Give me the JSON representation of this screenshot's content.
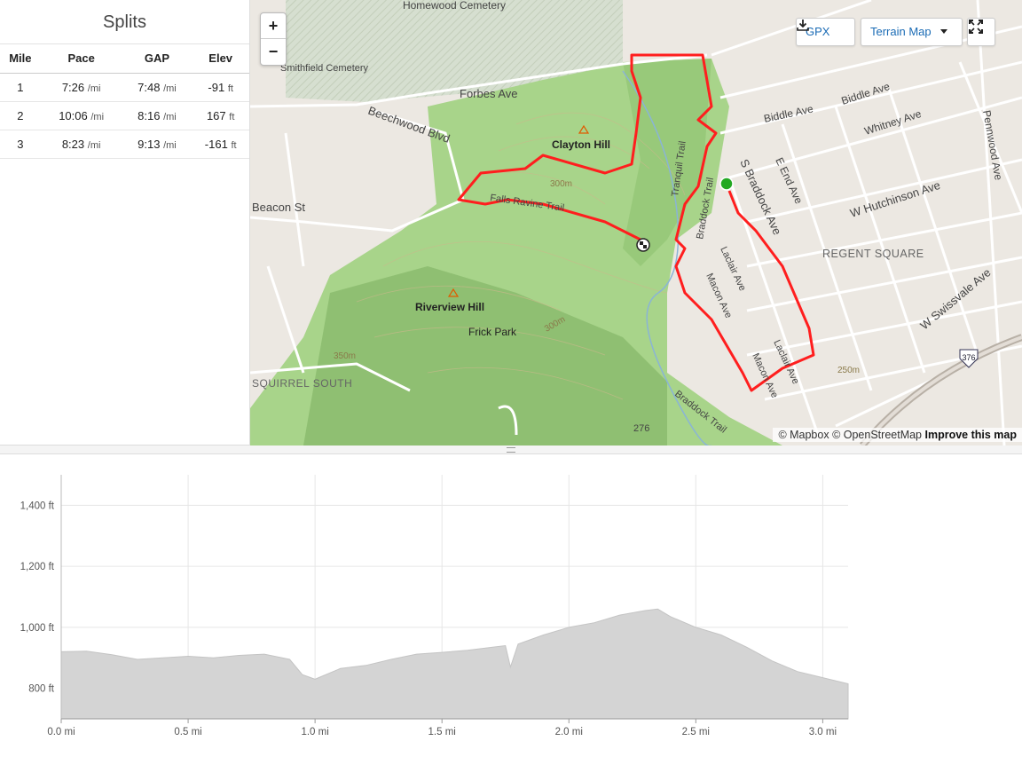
{
  "splits": {
    "title": "Splits",
    "headers": [
      "Mile",
      "Pace",
      "GAP",
      "Elev"
    ],
    "rows": [
      {
        "mile": "1",
        "pace": "7:26",
        "pace_unit": "/mi",
        "gap": "7:48",
        "gap_unit": "/mi",
        "elev": "-91",
        "elev_unit": "ft"
      },
      {
        "mile": "2",
        "pace": "10:06",
        "pace_unit": "/mi",
        "gap": "8:16",
        "gap_unit": "/mi",
        "elev": "167",
        "elev_unit": "ft"
      },
      {
        "mile": "3",
        "pace": "8:23",
        "pace_unit": "/mi",
        "gap": "9:13",
        "gap_unit": "/mi",
        "elev": "-161",
        "elev_unit": "ft"
      }
    ]
  },
  "map": {
    "zoom_in": "+",
    "zoom_out": "−",
    "gpx_label": "GPX",
    "map_type_label": "Terrain Map",
    "attribution_mapbox": "© Mapbox",
    "attribution_osm": "© OpenStreetMap",
    "attribution_improve": "Improve this map",
    "labels": {
      "homewood_cemetery": "Homewood Cemetery",
      "smithfield_cemetery": "Smithfield Cemetery",
      "forbes_ave": "Forbes Ave",
      "beechwood_blvd": "Beechwood Blvd",
      "beacon_st": "Beacon St",
      "clayton_hill": "Clayton Hill",
      "riverview_hill": "Riverview Hill",
      "frick_park": "Frick Park",
      "falls_ravine_trail": "Falls Ravine Trail",
      "tranquil_trail": "Tranquil Trail",
      "braddock_trail": "Braddock Trail",
      "s_braddock_ave": "S Braddock Ave",
      "biddle_ave": "Biddle Ave",
      "whitney_ave": "Whitney Ave",
      "e_end_ave": "E End Ave",
      "w_hutchinson_ave": "W Hutchinson Ave",
      "pennwood_ave": "Pennwood Ave",
      "regent_square": "REGENT SQUARE",
      "laclair_ave": "Laclair Ave",
      "macon_ave": "Macon Ave",
      "w_swissvale_ave": "W Swissvale Ave",
      "route_376": "376",
      "route_276": "276",
      "squirrel_south": "SQUIRREL SOUTH",
      "contour_300": "300m",
      "contour_350": "350m",
      "contour_250": "250m"
    },
    "colors": {
      "park": "#a8d48a",
      "route": "#ff1e1e",
      "start": "#22a822"
    }
  },
  "chart_data": {
    "type": "area",
    "x_unit": "mi",
    "y_unit": "ft",
    "x_ticks": [
      "0.0 mi",
      "0.5 mi",
      "1.0 mi",
      "1.5 mi",
      "2.0 mi",
      "2.5 mi",
      "3.0 mi"
    ],
    "y_ticks": [
      "800 ft",
      "1,000 ft",
      "1,200 ft",
      "1,400 ft"
    ],
    "xlim": [
      0,
      3.1
    ],
    "ylim": [
      700,
      1500
    ],
    "x": [
      0.0,
      0.1,
      0.2,
      0.3,
      0.4,
      0.5,
      0.6,
      0.7,
      0.8,
      0.9,
      0.95,
      1.0,
      1.1,
      1.2,
      1.3,
      1.4,
      1.5,
      1.6,
      1.7,
      1.75,
      1.77,
      1.8,
      1.85,
      1.9,
      2.0,
      2.1,
      2.2,
      2.3,
      2.35,
      2.4,
      2.5,
      2.6,
      2.7,
      2.8,
      2.9,
      3.0,
      3.1
    ],
    "y": [
      920,
      922,
      910,
      895,
      900,
      905,
      900,
      908,
      912,
      895,
      845,
      830,
      865,
      875,
      895,
      912,
      918,
      925,
      935,
      940,
      870,
      945,
      960,
      975,
      1000,
      1015,
      1040,
      1055,
      1060,
      1035,
      1000,
      975,
      935,
      890,
      855,
      835,
      815
    ],
    "grid": true
  }
}
